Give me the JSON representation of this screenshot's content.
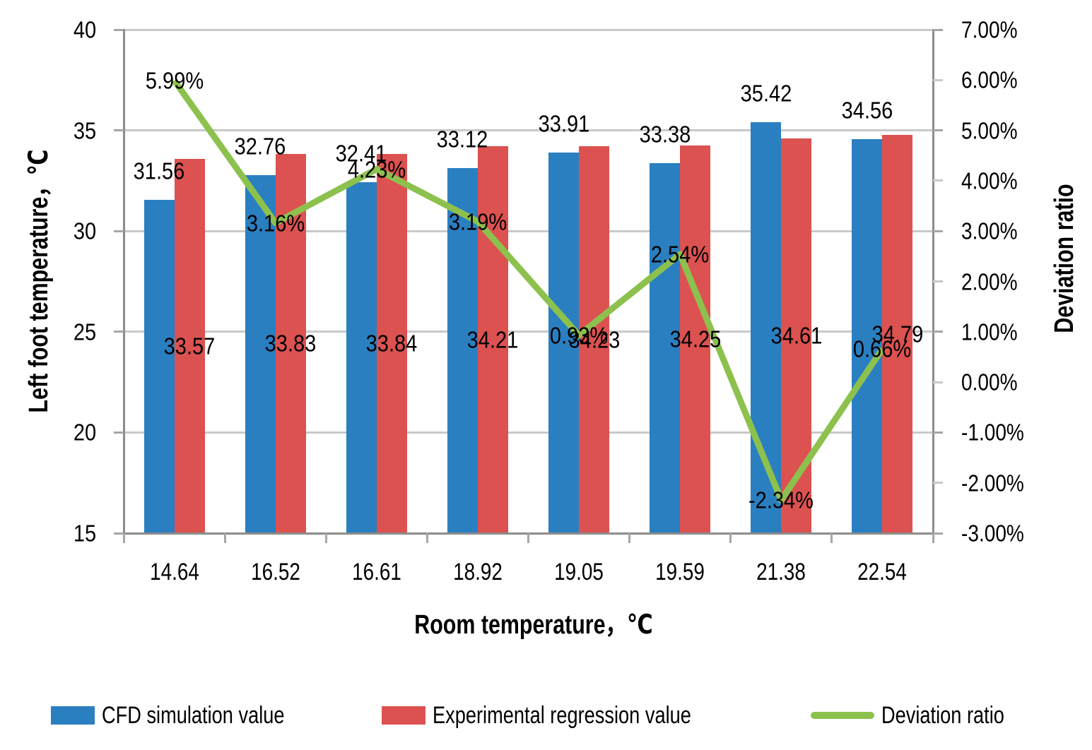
{
  "chart_data": {
    "type": "combo-bar-line",
    "categories": [
      "14.64",
      "16.52",
      "16.61",
      "18.92",
      "19.05",
      "19.59",
      "21.38",
      "22.54"
    ],
    "series": [
      {
        "name": "CFD simulation value",
        "type": "bar",
        "axis": "left",
        "color": "#2A7FC1",
        "values": [
          31.56,
          32.76,
          32.41,
          33.12,
          33.91,
          33.38,
          35.42,
          34.56
        ],
        "labels": [
          "31.56",
          "32.76",
          "32.41",
          "33.12",
          "33.91",
          "33.38",
          "35.42",
          "34.56"
        ]
      },
      {
        "name": "Experimental regression value",
        "type": "bar",
        "axis": "left",
        "color": "#DB5250",
        "values": [
          33.57,
          33.83,
          33.84,
          34.21,
          34.23,
          34.25,
          34.61,
          34.79
        ],
        "labels": [
          "33.57",
          "33.83",
          "33.84",
          "34.21",
          "34.23",
          "34.25",
          "34.61",
          "34.79"
        ]
      },
      {
        "name": "Deviation ratio",
        "type": "line",
        "axis": "right",
        "color": "#8DC14E",
        "values": [
          5.99,
          3.16,
          4.23,
          3.19,
          0.93,
          2.54,
          -2.34,
          0.66
        ],
        "labels": [
          "5.99%",
          "3.16%",
          "4.23%",
          "3.19%",
          "0.93%",
          "2.54%",
          "-2.34%",
          "0.66%"
        ]
      }
    ],
    "left_axis": {
      "title": "Left foot temperature，℃",
      "min": 15,
      "max": 40,
      "tick_labels": [
        "40",
        "35",
        "30",
        "25",
        "20",
        "15"
      ]
    },
    "right_axis": {
      "title": "Deviation ratio",
      "min": -3,
      "max": 7,
      "tick_labels": [
        "7.00%",
        "6.00%",
        "5.00%",
        "4.00%",
        "3.00%",
        "2.00%",
        "1.00%",
        "0.00%",
        "-1.00%",
        "-2.00%",
        "-3.00%"
      ]
    },
    "x_axis": {
      "title": "Room temperature，℃"
    },
    "legend_position": "bottom",
    "grid": true,
    "colors": {
      "gridline": "#C9C9C9",
      "axis_line": "#8C8C8C",
      "tick_mark": "#A6A6A6",
      "text": "#000000",
      "background": "#FFFFFF"
    }
  }
}
